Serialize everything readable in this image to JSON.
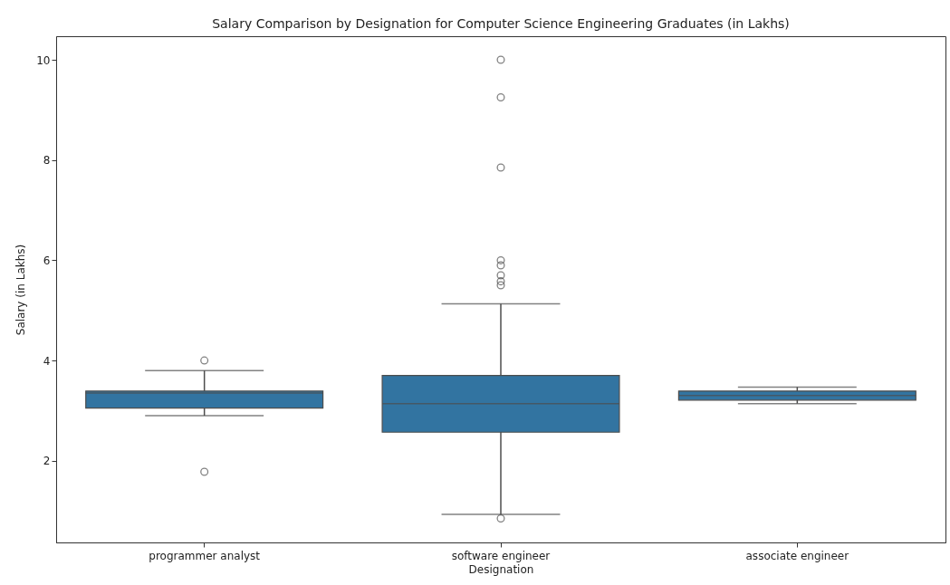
{
  "chart_data": {
    "type": "box",
    "title": "Salary Comparison by Designation for Computer Science Engineering Graduates (in Lakhs)",
    "xlabel": "Designation",
    "ylabel": "Salary (in Lakhs)",
    "categories": [
      "programmer analyst",
      "software engineer",
      "associate engineer"
    ],
    "ylim": [
      0.37,
      10.47
    ],
    "yticks": [
      2,
      4,
      6,
      8,
      10
    ],
    "grid": false,
    "series": [
      {
        "color": "#3274a1",
        "boxes": [
          {
            "low": 2.9,
            "q1": 3.05,
            "median": 3.35,
            "q3": 3.39,
            "high": 3.8,
            "outliers": [
              4.0,
              1.78
            ]
          },
          {
            "low": 0.93,
            "q1": 2.57,
            "median": 3.14,
            "q3": 3.7,
            "high": 5.13,
            "outliers": [
              10.0,
              9.25,
              7.85,
              6.0,
              5.9,
              5.7,
              5.58,
              5.5,
              0.85
            ]
          },
          {
            "low": 3.14,
            "q1": 3.21,
            "median": 3.3,
            "q3": 3.39,
            "high": 3.47
          }
        ]
      }
    ]
  }
}
